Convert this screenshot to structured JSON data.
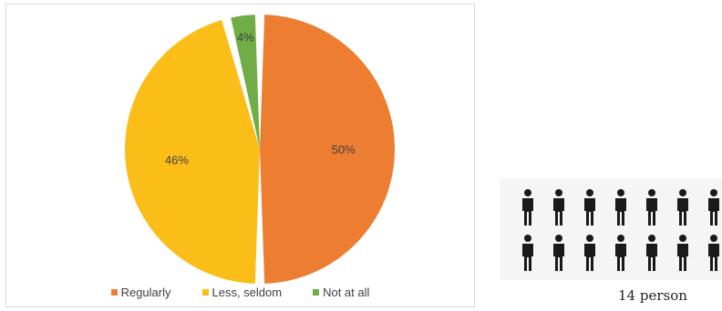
{
  "chart_data": {
    "type": "pie",
    "categories": [
      "Regularly",
      "Less, seldom",
      "Not at all"
    ],
    "values": [
      50,
      46,
      4
    ],
    "labels": [
      "50%",
      "46%",
      "4%"
    ],
    "colors": [
      "#ED7D31",
      "#FBBE18",
      "#70AD47"
    ],
    "title": "",
    "legend_position": "bottom"
  },
  "legend": {
    "items": [
      {
        "label": "Regularly",
        "color": "#ED7D31"
      },
      {
        "label": "Less, seldom",
        "color": "#FBBE18"
      },
      {
        "label": "Not at all",
        "color": "#70AD47"
      }
    ]
  },
  "people": {
    "count": 14,
    "icon": "person-icon",
    "color": "#1a1a1a",
    "caption": "14 person"
  }
}
